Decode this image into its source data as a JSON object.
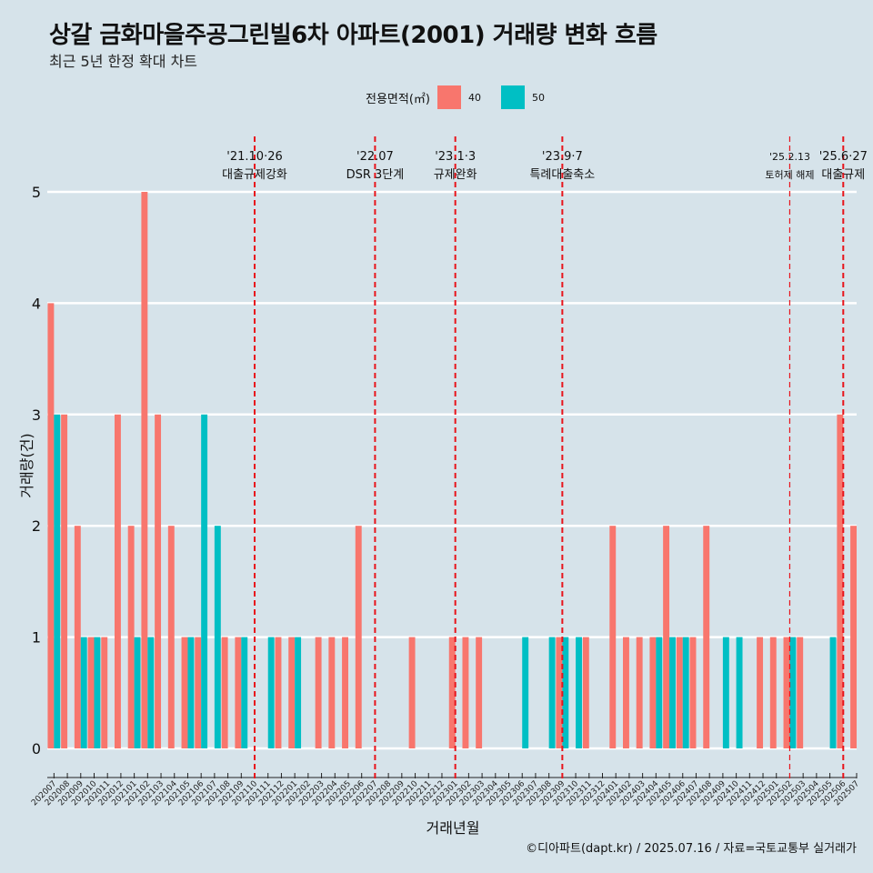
{
  "title": "상갈 금화마을주공그린빌6차 아파트(2001) 거래량 변화 흐름",
  "subtitle": "최근 5년 한정 확대 차트",
  "caption": "©디아파트(dapt.kr) / 2025.07.16 / 자료=국토교통부 실거래가",
  "legend": {
    "title": "전용면적(㎡)"
  },
  "colors": {
    "s40": "#f8766d",
    "s50": "#00bfc4",
    "event": "#e8141b",
    "grid": "#ffffff",
    "background": "#d6e3ea"
  },
  "chart_data": {
    "type": "bar",
    "title": "상갈 금화마을주공그린빌6차 아파트(2001) 거래량 변화 흐름",
    "xlabel": "거래년월",
    "ylabel": "거래량(건)",
    "ylim": [
      0,
      5
    ],
    "yticks": [
      0,
      1,
      2,
      3,
      4,
      5
    ],
    "categories": [
      "202007",
      "202008",
      "202009",
      "202010",
      "202011",
      "202012",
      "202101",
      "202102",
      "202103",
      "202104",
      "202105",
      "202106",
      "202107",
      "202108",
      "202109",
      "202110",
      "202111",
      "202112",
      "202201",
      "202202",
      "202203",
      "202204",
      "202205",
      "202206",
      "202207",
      "202208",
      "202209",
      "202210",
      "202211",
      "202212",
      "202301",
      "202302",
      "202303",
      "202304",
      "202305",
      "202306",
      "202307",
      "202308",
      "202309",
      "202310",
      "202311",
      "202312",
      "202401",
      "202402",
      "202403",
      "202404",
      "202405",
      "202406",
      "202407",
      "202408",
      "202409",
      "202410",
      "202411",
      "202412",
      "202501",
      "202502",
      "202503",
      "202504",
      "202505",
      "202506",
      "202507"
    ],
    "series": [
      {
        "name": "40",
        "values": [
          4,
          3,
          2,
          1,
          1,
          3,
          2,
          5,
          3,
          2,
          1,
          1,
          0,
          1,
          1,
          0,
          0,
          1,
          1,
          0,
          1,
          1,
          1,
          2,
          0,
          0,
          0,
          1,
          0,
          0,
          1,
          1,
          1,
          0,
          0,
          0,
          0,
          0,
          1,
          0,
          1,
          0,
          2,
          1,
          1,
          1,
          2,
          1,
          1,
          2,
          0,
          0,
          0,
          1,
          1,
          1,
          1,
          0,
          0,
          3,
          2
        ]
      },
      {
        "name": "50",
        "values": [
          3,
          0,
          1,
          1,
          0,
          0,
          1,
          1,
          0,
          0,
          1,
          3,
          2,
          0,
          1,
          0,
          1,
          0,
          1,
          0,
          0,
          0,
          0,
          0,
          0,
          0,
          0,
          0,
          0,
          0,
          0,
          0,
          0,
          0,
          0,
          1,
          0,
          1,
          1,
          1,
          0,
          0,
          0,
          0,
          0,
          1,
          1,
          1,
          0,
          0,
          1,
          1,
          0,
          0,
          0,
          1,
          0,
          0,
          1,
          0,
          0
        ]
      }
    ],
    "events": [
      {
        "month": "202110",
        "date": "'21.10·26",
        "label": "대출규제강화"
      },
      {
        "month": "202207",
        "date": "'22.07",
        "label": "DSR 3단계"
      },
      {
        "month": "202301",
        "date": "'23.1·3",
        "label": "규제완화"
      },
      {
        "month": "202309",
        "date": "'23.9·7",
        "label": "특례대출축소"
      },
      {
        "month": "202502",
        "date": "'25.2.13",
        "label": "토허제 해제"
      },
      {
        "month": "202506",
        "date": "'25.6·27",
        "label": "대출규제"
      }
    ]
  }
}
